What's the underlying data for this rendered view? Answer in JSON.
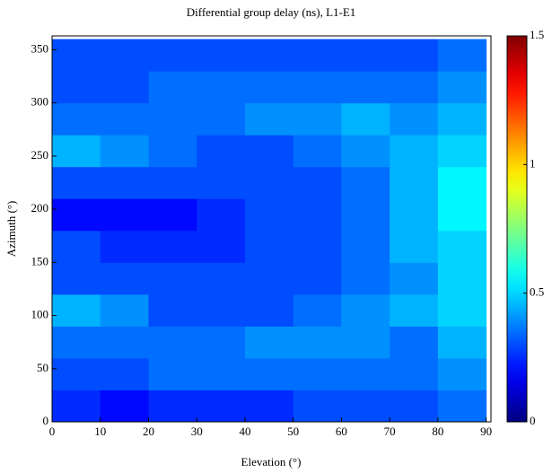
{
  "chart_data": {
    "type": "heatmap",
    "title": "Differential group delay (ns), L1-E1",
    "x_label": "Elevation (°)",
    "y_label": "Azimuth (°)",
    "xbins": [
      0,
      10,
      20,
      30,
      40,
      50,
      60,
      70,
      80,
      90
    ],
    "ybins": [
      0,
      30,
      60,
      90,
      120,
      150,
      180,
      210,
      240,
      270,
      300,
      330,
      360
    ],
    "z": [
      [
        0.25,
        0.2,
        0.25,
        0.25,
        0.25,
        0.3,
        0.3,
        0.3,
        0.35
      ],
      [
        0.3,
        0.3,
        0.35,
        0.35,
        0.35,
        0.35,
        0.35,
        0.35,
        0.4
      ],
      [
        0.35,
        0.35,
        0.35,
        0.35,
        0.4,
        0.4,
        0.4,
        0.35,
        0.45
      ],
      [
        0.45,
        0.4,
        0.3,
        0.3,
        0.3,
        0.35,
        0.4,
        0.45,
        0.5
      ],
      [
        0.3,
        0.3,
        0.3,
        0.3,
        0.3,
        0.3,
        0.35,
        0.4,
        0.5
      ],
      [
        0.3,
        0.25,
        0.25,
        0.25,
        0.3,
        0.3,
        0.35,
        0.45,
        0.5
      ],
      [
        0.2,
        0.2,
        0.2,
        0.25,
        0.3,
        0.3,
        0.35,
        0.45,
        0.55
      ],
      [
        0.3,
        0.3,
        0.3,
        0.3,
        0.3,
        0.3,
        0.35,
        0.45,
        0.55
      ],
      [
        0.45,
        0.4,
        0.35,
        0.3,
        0.3,
        0.35,
        0.4,
        0.45,
        0.5
      ],
      [
        0.35,
        0.35,
        0.35,
        0.35,
        0.4,
        0.4,
        0.45,
        0.4,
        0.45
      ],
      [
        0.3,
        0.3,
        0.35,
        0.35,
        0.35,
        0.35,
        0.35,
        0.35,
        0.4
      ],
      [
        0.3,
        0.3,
        0.3,
        0.3,
        0.3,
        0.3,
        0.3,
        0.3,
        0.35
      ]
    ],
    "xlim": [
      0,
      91
    ],
    "ylim": [
      0,
      363
    ],
    "xticks": [
      0,
      10,
      20,
      30,
      40,
      50,
      60,
      70,
      80,
      90
    ],
    "yticks": [
      0,
      50,
      100,
      150,
      200,
      250,
      300,
      350
    ],
    "colormap": "jet",
    "clim": [
      0,
      1.5
    ],
    "cticks": [
      0,
      0.5,
      1,
      1.5
    ]
  }
}
